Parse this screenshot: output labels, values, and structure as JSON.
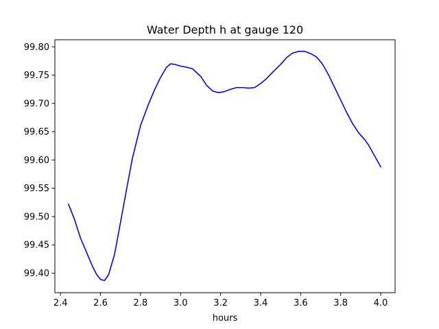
{
  "chart_data": {
    "type": "line",
    "title": "Water Depth h at gauge 120",
    "xlabel": "hours",
    "ylabel": "",
    "xlim": [
      2.372,
      4.072
    ],
    "ylim": [
      99.3655,
      99.8125
    ],
    "xticks": [
      2.4,
      2.6,
      2.8,
      3.0,
      3.2,
      3.4,
      3.6,
      3.8,
      4.0
    ],
    "xtick_labels": [
      "2.4",
      "2.6",
      "2.8",
      "3.0",
      "3.2",
      "3.4",
      "3.6",
      "3.8",
      "4.0"
    ],
    "yticks": [
      99.4,
      99.45,
      99.5,
      99.55,
      99.6,
      99.65,
      99.7,
      99.75,
      99.8
    ],
    "ytick_labels": [
      "99.40",
      "99.45",
      "99.50",
      "99.55",
      "99.60",
      "99.65",
      "99.70",
      "99.75",
      "99.80"
    ],
    "grid": false,
    "series": [
      {
        "color": "#0000ff",
        "x": [
          2.44,
          2.47,
          2.5,
          2.53,
          2.56,
          2.58,
          2.6,
          2.62,
          2.64,
          2.67,
          2.7,
          2.73,
          2.76,
          2.8,
          2.84,
          2.87,
          2.9,
          2.93,
          2.95,
          2.97,
          3.0,
          3.03,
          3.06,
          3.1,
          3.13,
          3.16,
          3.19,
          3.22,
          3.25,
          3.28,
          3.31,
          3.34,
          3.37,
          3.4,
          3.43,
          3.46,
          3.5,
          3.53,
          3.56,
          3.59,
          3.62,
          3.65,
          3.68,
          3.71,
          3.74,
          3.77,
          3.8,
          3.83,
          3.86,
          3.89,
          3.92,
          3.94,
          3.97,
          4.0
        ],
        "y": [
          99.522,
          99.495,
          99.462,
          99.437,
          99.412,
          99.398,
          99.389,
          99.387,
          99.397,
          99.433,
          99.49,
          99.548,
          99.604,
          99.661,
          99.699,
          99.724,
          99.746,
          99.764,
          99.77,
          99.769,
          99.766,
          99.764,
          99.761,
          99.748,
          99.732,
          99.722,
          99.719,
          99.721,
          99.725,
          99.728,
          99.728,
          99.727,
          99.728,
          99.735,
          99.744,
          99.755,
          99.769,
          99.781,
          99.789,
          99.792,
          99.792,
          99.788,
          99.782,
          99.769,
          99.75,
          99.728,
          99.706,
          99.684,
          99.664,
          99.648,
          99.636,
          99.626,
          99.607,
          99.588
        ]
      }
    ]
  }
}
